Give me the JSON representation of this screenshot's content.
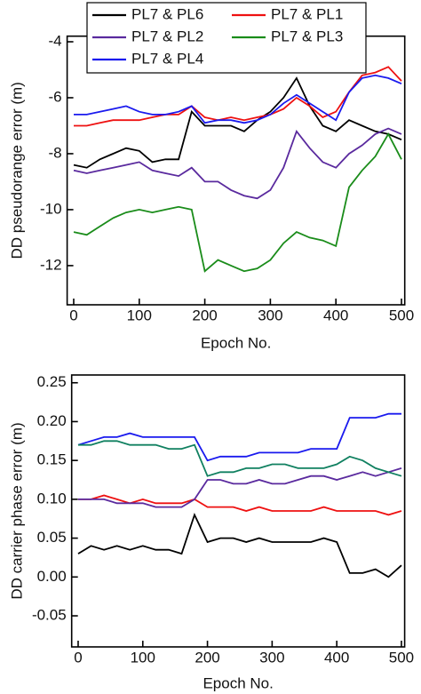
{
  "chart_data": [
    {
      "type": "line",
      "x": [
        0,
        20,
        40,
        60,
        80,
        100,
        120,
        140,
        160,
        180,
        200,
        220,
        240,
        260,
        280,
        300,
        320,
        340,
        360,
        380,
        400,
        420,
        440,
        460,
        480,
        500
      ],
      "xlabel": "Epoch No.",
      "ylabel": "DD pseudorange error (m)",
      "xlim": [
        -10,
        505
      ],
      "xticks": [
        0,
        100,
        200,
        300,
        400,
        500
      ],
      "ylim": [
        -13.4,
        -3.8
      ],
      "yticks": [
        -12,
        -10,
        -8,
        -6,
        -4
      ],
      "legend": "top",
      "series": [
        {
          "name": "PL7 & PL6",
          "color": "#000000",
          "values": [
            -8.4,
            -8.5,
            -8.2,
            -8.0,
            -7.8,
            -7.9,
            -8.3,
            -8.2,
            -8.2,
            -6.5,
            -7.0,
            -7.0,
            -7.0,
            -7.2,
            -6.8,
            -6.5,
            -6.0,
            -5.3,
            -6.3,
            -7.0,
            -7.2,
            -6.8,
            -7.0,
            -7.2,
            -7.3,
            -7.5
          ]
        },
        {
          "name": "PL7 & PL1",
          "color": "#ee1111",
          "values": [
            -7.0,
            -7.0,
            -6.9,
            -6.8,
            -6.8,
            -6.8,
            -6.7,
            -6.6,
            -6.6,
            -6.3,
            -6.7,
            -6.8,
            -6.7,
            -6.8,
            -6.7,
            -6.6,
            -6.4,
            -6.0,
            -6.3,
            -6.7,
            -6.5,
            -5.8,
            -5.2,
            -5.1,
            -4.9,
            -5.4
          ]
        },
        {
          "name": "PL7 & PL2",
          "color": "#5a2a9e",
          "values": [
            -8.6,
            -8.7,
            -8.6,
            -8.5,
            -8.4,
            -8.3,
            -8.6,
            -8.7,
            -8.8,
            -8.5,
            -9.0,
            -9.0,
            -9.3,
            -9.5,
            -9.6,
            -9.3,
            -8.5,
            -7.2,
            -7.8,
            -8.3,
            -8.5,
            -8.0,
            -7.7,
            -7.3,
            -7.1,
            -7.3
          ]
        },
        {
          "name": "PL7 & PL3",
          "color": "#1a8c1a",
          "values": [
            -10.8,
            -10.9,
            -10.6,
            -10.3,
            -10.1,
            -10.0,
            -10.1,
            -10.0,
            -9.9,
            -10.0,
            -12.2,
            -11.8,
            -12.0,
            -12.2,
            -12.1,
            -11.8,
            -11.2,
            -10.8,
            -11.0,
            -11.1,
            -11.3,
            -9.2,
            -8.6,
            -8.1,
            -7.3,
            -8.2
          ]
        },
        {
          "name": "PL7 & PL4",
          "color": "#1a1aee",
          "values": [
            -6.6,
            -6.6,
            -6.5,
            -6.4,
            -6.3,
            -6.5,
            -6.6,
            -6.6,
            -6.5,
            -6.3,
            -6.9,
            -6.8,
            -6.8,
            -6.9,
            -6.8,
            -6.6,
            -6.2,
            -5.9,
            -6.2,
            -6.5,
            -6.8,
            -5.8,
            -5.3,
            -5.2,
            -5.3,
            -5.5
          ]
        }
      ]
    },
    {
      "type": "line",
      "x": [
        0,
        20,
        40,
        60,
        80,
        100,
        120,
        140,
        160,
        180,
        200,
        220,
        240,
        260,
        280,
        300,
        320,
        340,
        360,
        380,
        400,
        420,
        440,
        460,
        480,
        500
      ],
      "xlabel": "Epoch No.",
      "ylabel": "DD carrier phase error (m)",
      "xlim": [
        -10,
        505
      ],
      "xticks": [
        0,
        100,
        200,
        300,
        400,
        500
      ],
      "ylim": [
        -0.09,
        0.26
      ],
      "yticks": [
        {
          "value": -0.05,
          "label": "-0.05"
        },
        {
          "value": 0,
          "label": "0.00"
        },
        {
          "value": 0.05,
          "label": "0.05"
        },
        {
          "value": 0.1,
          "label": "0.10"
        },
        {
          "value": 0.15,
          "label": "0.15"
        },
        {
          "value": 0.2,
          "label": "0.20"
        },
        {
          "value": 0.25,
          "label": "0.25"
        }
      ],
      "series": [
        {
          "color": "#000000",
          "values": [
            0.03,
            0.04,
            0.035,
            0.04,
            0.035,
            0.04,
            0.035,
            0.035,
            0.03,
            0.08,
            0.045,
            0.05,
            0.05,
            0.045,
            0.05,
            0.045,
            0.045,
            0.045,
            0.045,
            0.05,
            0.045,
            0.005,
            0.005,
            0.01,
            0.0,
            0.015
          ]
        },
        {
          "color": "#ee1111",
          "values": [
            0.1,
            0.1,
            0.105,
            0.1,
            0.095,
            0.1,
            0.095,
            0.095,
            0.095,
            0.1,
            0.09,
            0.09,
            0.09,
            0.085,
            0.09,
            0.085,
            0.085,
            0.085,
            0.085,
            0.09,
            0.085,
            0.085,
            0.085,
            0.085,
            0.08,
            0.085
          ]
        },
        {
          "color": "#5a2a9e",
          "values": [
            0.1,
            0.1,
            0.1,
            0.095,
            0.095,
            0.095,
            0.09,
            0.09,
            0.09,
            0.1,
            0.125,
            0.125,
            0.12,
            0.12,
            0.125,
            0.12,
            0.12,
            0.125,
            0.13,
            0.13,
            0.125,
            0.13,
            0.135,
            0.13,
            0.135,
            0.14
          ]
        },
        {
          "color": "#1a1aee",
          "values": [
            0.17,
            0.175,
            0.18,
            0.18,
            0.185,
            0.18,
            0.18,
            0.18,
            0.18,
            0.18,
            0.15,
            0.155,
            0.155,
            0.155,
            0.16,
            0.16,
            0.16,
            0.16,
            0.165,
            0.165,
            0.165,
            0.205,
            0.205,
            0.205,
            0.21,
            0.21
          ]
        },
        {
          "color": "#108060",
          "values": [
            0.17,
            0.17,
            0.175,
            0.175,
            0.17,
            0.17,
            0.17,
            0.165,
            0.165,
            0.17,
            0.13,
            0.135,
            0.135,
            0.14,
            0.14,
            0.145,
            0.145,
            0.14,
            0.14,
            0.14,
            0.145,
            0.155,
            0.15,
            0.14,
            0.135,
            0.13
          ]
        }
      ]
    }
  ]
}
